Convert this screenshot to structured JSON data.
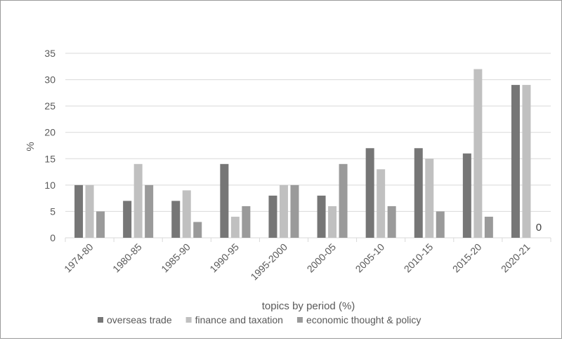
{
  "chart_data": {
    "type": "bar",
    "title": "",
    "xlabel": "topics by period (%)",
    "ylabel": "%",
    "ylim": [
      0,
      35
    ],
    "yticks": [
      0,
      5,
      10,
      15,
      20,
      25,
      30,
      35
    ],
    "grid": true,
    "legend_position": "bottom",
    "categories": [
      "1974-80",
      "1980-85",
      "1985-90",
      "1990-95",
      "1995-2000",
      "2000-05",
      "2005-10",
      "2010-15",
      "2015-20",
      "2020-21"
    ],
    "series": [
      {
        "name": "overseas trade",
        "color": "#767676",
        "values": [
          10,
          7,
          7,
          14,
          8,
          8,
          17,
          17,
          16,
          29
        ]
      },
      {
        "name": "finance and taxation",
        "color": "#c0c0c0",
        "values": [
          10,
          14,
          9,
          4,
          10,
          6,
          13,
          15,
          32,
          29
        ]
      },
      {
        "name": "economic thought & policy",
        "color": "#9a9a9a",
        "values": [
          5,
          10,
          3,
          6,
          10,
          14,
          6,
          5,
          4,
          0
        ]
      }
    ],
    "annotations": [
      {
        "category": "2020-21",
        "series": "economic thought & policy",
        "text": "0"
      }
    ]
  }
}
